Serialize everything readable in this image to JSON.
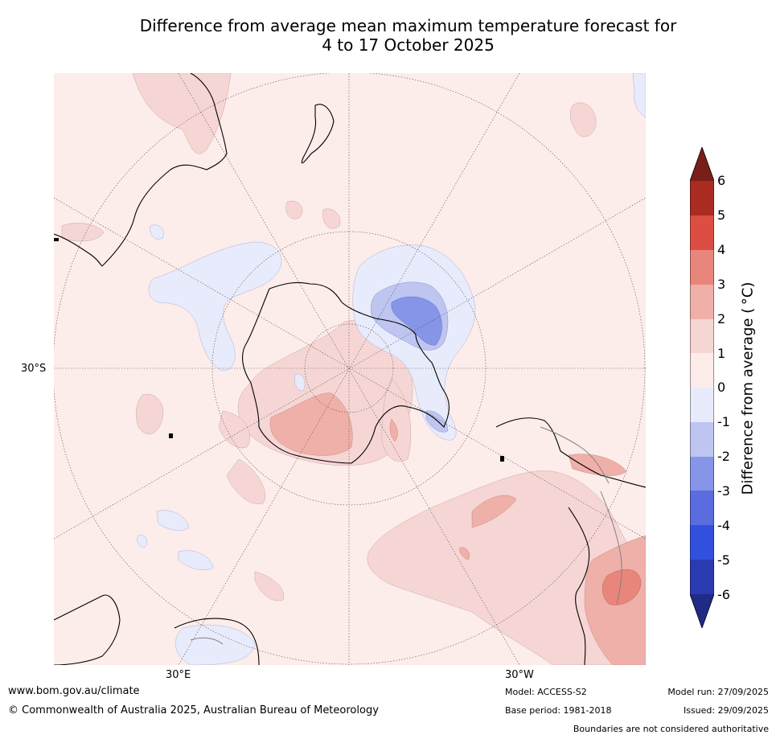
{
  "title": {
    "line1": "Difference from average mean maximum temperature forecast for",
    "line2": "4 to 17 October 2025"
  },
  "map": {
    "lat_label": "30°S",
    "lon_label_east": "30°E",
    "lon_label_west": "30°W",
    "colors": {
      "land_line": "#000000",
      "border_line": "#808080",
      "grid_line": "#555555"
    }
  },
  "colorbar": {
    "label": "Difference from average ( °C)",
    "ticks": [
      "6",
      "5",
      "4",
      "3",
      "2",
      "1",
      "0",
      "-1",
      "-2",
      "-3",
      "-4",
      "-5",
      "-6"
    ],
    "colors": {
      "above_6": "#7a1f18",
      "5_6": "#aa2b22",
      "4_5": "#db4e41",
      "3_4": "#e8867c",
      "2_3": "#efb0a9",
      "1_2": "#f6d6d4",
      "0_1": "#fcecea",
      "m1_0": "#e8ebfb",
      "m2_m1": "#bec5f1",
      "m3_m2": "#8795e8",
      "m4_m3": "#5a6cde",
      "m5_m4": "#3150dd",
      "m6_m5": "#2a3ab0",
      "below_m6": "#1f2b86"
    }
  },
  "footer": {
    "url": "www.bom.gov.au/climate",
    "copyright": "© Commonwealth of Australia 2025, Australian Bureau of Meteorology",
    "model": "Model: ACCESS-S2",
    "base_period": "Base period: 1981-2018",
    "model_run": "Model run: 27/09/2025",
    "issued": "Issued: 29/09/2025",
    "boundaries": "Boundaries are not considered authoritative"
  }
}
